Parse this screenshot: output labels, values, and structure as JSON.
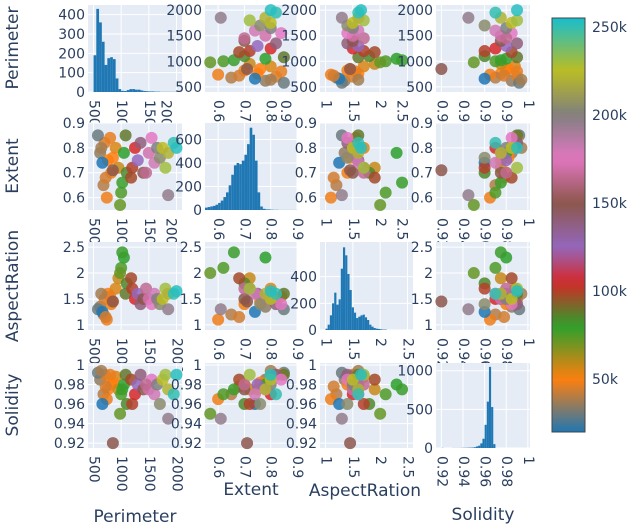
{
  "chart_data": {
    "type": "scatter-matrix",
    "dimensions": [
      "Perimeter",
      "Extent",
      "AspectRation",
      "Solidity"
    ],
    "axis_labels": {
      "x": [
        "Perimeter",
        "Extent",
        "AspectRation",
        "Solidity"
      ],
      "y": [
        "Perimeter",
        "Extent",
        "AspectRation",
        "Solidity"
      ]
    },
    "ranges": [
      [
        400,
        2100
      ],
      [
        0.55,
        0.9
      ],
      [
        0.9,
        2.6
      ],
      [
        0.915,
        1.002
      ]
    ],
    "ticks": [
      [
        500,
        1000,
        1500,
        2000
      ],
      [
        0.6,
        0.7,
        0.8,
        0.9
      ],
      [
        1,
        1.5,
        2,
        2.5
      ],
      [
        0.92,
        0.94,
        0.96,
        0.98,
        1
      ]
    ],
    "tick_labels": [
      [
        "500",
        "1000",
        "1500",
        "2000"
      ],
      [
        "0.6",
        "0.7",
        "0.8",
        "0.9"
      ],
      [
        "1",
        "1.5",
        "2",
        "2.5"
      ],
      [
        "0.92",
        "0.94",
        "0.96",
        "0.98",
        "1"
      ]
    ],
    "histograms": [
      {
        "dimension": "Perimeter",
        "bin_start": 500,
        "bin_width": 50,
        "counts": [
          190,
          430,
          360,
          260,
          140,
          175,
          180,
          170,
          70,
          15,
          6,
          5,
          10,
          15,
          15,
          12,
          12,
          8,
          5,
          4,
          3,
          3,
          2,
          2,
          1,
          1,
          1,
          1,
          1,
          1,
          1,
          1
        ],
        "yticks": [
          0,
          100,
          200,
          300,
          400
        ],
        "ymax": 450
      },
      {
        "dimension": "Extent",
        "bin_start": 0.55,
        "bin_width": 0.01,
        "counts": [
          20,
          25,
          30,
          35,
          45,
          60,
          80,
          110,
          150,
          210,
          300,
          380,
          400,
          390,
          420,
          470,
          560,
          700,
          640,
          420,
          150,
          30,
          10,
          5,
          5,
          3,
          2,
          2,
          1,
          1,
          1,
          1,
          1,
          1,
          1
        ],
        "yticks": [
          0,
          200,
          400,
          600
        ],
        "ymax": 740
      },
      {
        "dimension": "AspectRation",
        "bin_start": 1.0,
        "bin_width": 0.04,
        "counts": [
          10,
          40,
          110,
          200,
          280,
          190,
          230,
          460,
          620,
          560,
          420,
          300,
          170,
          130,
          90,
          100,
          110,
          115,
          95,
          75,
          40,
          25,
          15,
          10,
          8,
          5,
          3,
          3
        ],
        "yticks": [
          0,
          200,
          400
        ],
        "ymax": 660
      },
      {
        "dimension": "Solidity",
        "bin_start": 0.92,
        "bin_width": 0.002,
        "counts": [
          2,
          0,
          0,
          0,
          0,
          1,
          1,
          1,
          1,
          2,
          3,
          3,
          4,
          5,
          6,
          10,
          20,
          30,
          60,
          120,
          300,
          600,
          1050,
          530,
          50
        ],
        "yticks": [
          0,
          500,
          1000
        ],
        "ymax": 1100
      }
    ],
    "sample_points_fields": [
      "Perimeter",
      "Extent",
      "AspectRation",
      "Solidity",
      "Area"
    ],
    "sample_points": [
      [
        620,
        0.78,
        1.35,
        0.985,
        35000
      ],
      [
        700,
        0.82,
        1.5,
        0.99,
        45000
      ],
      [
        760,
        0.75,
        1.6,
        0.975,
        50000
      ],
      [
        820,
        0.7,
        1.4,
        0.98,
        52000
      ],
      [
        680,
        0.65,
        1.2,
        0.97,
        40000
      ],
      [
        900,
        0.8,
        1.7,
        0.988,
        55000
      ],
      [
        580,
        0.85,
        1.3,
        0.992,
        30000
      ],
      [
        740,
        0.6,
        1.1,
        0.965,
        48000
      ],
      [
        850,
        0.76,
        1.45,
        0.982,
        50000
      ],
      [
        950,
        0.72,
        1.9,
        0.975,
        58000
      ],
      [
        800,
        0.84,
        1.55,
        0.99,
        47000
      ],
      [
        660,
        0.74,
        1.25,
        0.96,
        20000
      ],
      [
        720,
        0.68,
        1.15,
        0.978,
        44000
      ],
      [
        640,
        0.8,
        1.6,
        0.994,
        38000
      ],
      [
        1000,
        0.62,
        2.1,
        0.97,
        75000
      ],
      [
        1050,
        0.78,
        2.3,
        0.98,
        80000
      ],
      [
        1100,
        0.7,
        1.8,
        0.96,
        85000
      ],
      [
        980,
        0.57,
        2.0,
        0.95,
        72000
      ],
      [
        1080,
        0.85,
        1.6,
        0.99,
        88000
      ],
      [
        1020,
        0.66,
        2.4,
        0.975,
        78000
      ],
      [
        1200,
        0.72,
        1.7,
        0.96,
        100000
      ],
      [
        1250,
        0.8,
        1.5,
        0.97,
        105000
      ],
      [
        1180,
        0.68,
        1.9,
        0.985,
        98000
      ],
      [
        1300,
        0.75,
        1.6,
        0.98,
        125000
      ],
      [
        1350,
        0.82,
        1.4,
        0.99,
        140000
      ],
      [
        1400,
        0.7,
        1.5,
        0.975,
        150000
      ],
      [
        1500,
        0.78,
        1.5,
        0.975,
        170000
      ],
      [
        1550,
        0.84,
        1.4,
        0.985,
        175000
      ],
      [
        1450,
        0.7,
        1.7,
        0.98,
        165000
      ],
      [
        1600,
        0.74,
        1.6,
        0.97,
        180000
      ],
      [
        1650,
        0.8,
        1.5,
        0.98,
        200000
      ],
      [
        1700,
        0.76,
        1.4,
        0.96,
        205000
      ],
      [
        1850,
        0.61,
        1.3,
        0.945,
        195000
      ],
      [
        1750,
        0.8,
        1.5,
        0.985,
        225000
      ],
      [
        1800,
        0.72,
        1.7,
        0.99,
        230000
      ],
      [
        1850,
        0.78,
        1.6,
        0.975,
        220000
      ],
      [
        1950,
        0.82,
        1.6,
        0.97,
        250000
      ],
      [
        2000,
        0.8,
        1.65,
        0.99,
        252000
      ],
      [
        850,
        0.71,
        1.45,
        0.92,
        150000
      ]
    ],
    "colorbar": {
      "min": 20000,
      "max": 255000,
      "ticks": [
        50000,
        100000,
        150000,
        200000,
        250000
      ],
      "tick_labels": [
        "50k",
        "100k",
        "150k",
        "200k",
        "250k"
      ],
      "scale": [
        [
          20000,
          "#1f77b4"
        ],
        [
          50000,
          "#ff7f0e"
        ],
        [
          80000,
          "#2ca02c"
        ],
        [
          105000,
          "#d62728"
        ],
        [
          125000,
          "#9467bd"
        ],
        [
          150000,
          "#8c564b"
        ],
        [
          175000,
          "#e377c2"
        ],
        [
          200000,
          "#7f7f7f"
        ],
        [
          225000,
          "#bcbd22"
        ],
        [
          255000,
          "#17becf"
        ]
      ]
    },
    "histogram_color": "#1f77b4",
    "panel_bg": "#e5ecf6",
    "grid": true
  }
}
